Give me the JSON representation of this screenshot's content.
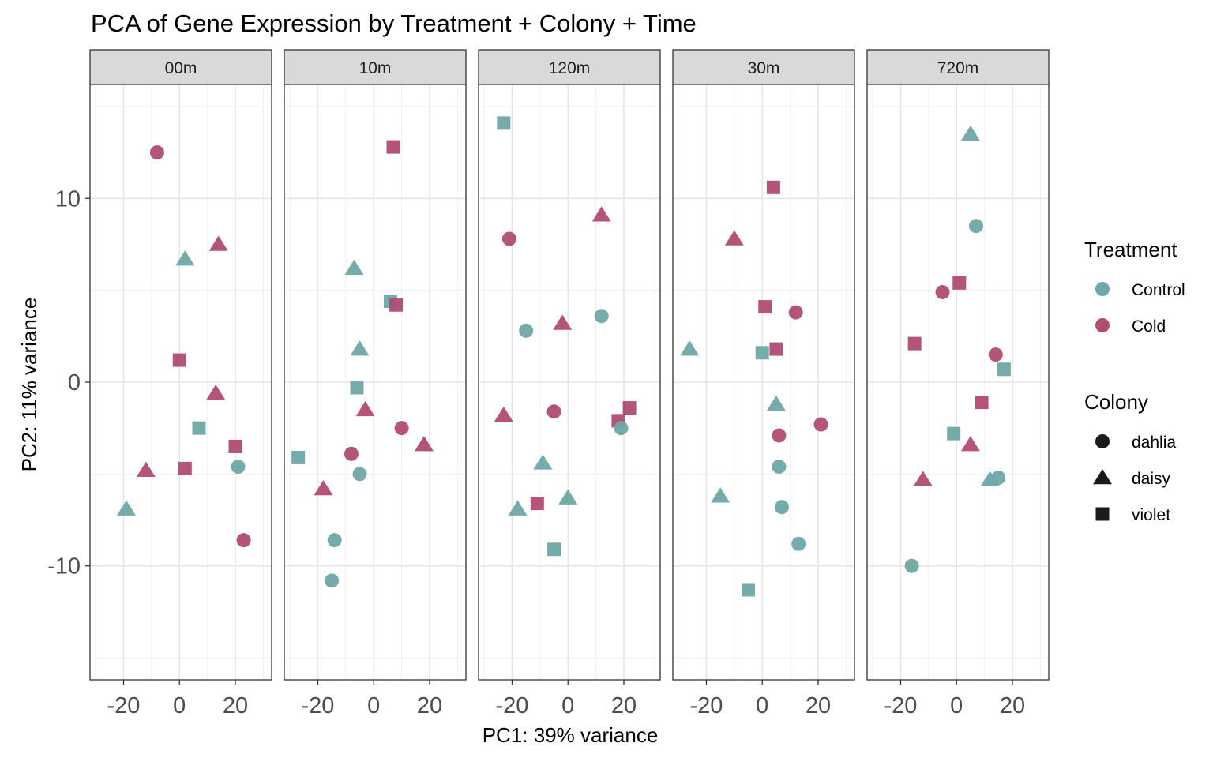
{
  "chart_data": {
    "type": "scatter",
    "title": "PCA of Gene Expression by Treatment + Colony + Time",
    "xlabel": "PC1: 39% variance",
    "ylabel": "PC2: 11% variance",
    "xlim": [
      -32,
      33
    ],
    "ylim": [
      -16.2,
      16.2
    ],
    "x_ticks": [
      -20,
      0,
      20
    ],
    "x_tick_labels": [
      "-20",
      "0",
      "20"
    ],
    "y_ticks": [
      -10,
      0,
      10
    ],
    "y_tick_labels": [
      "-10",
      "0",
      "10"
    ],
    "grid": true,
    "facet_by": "time",
    "legend": {
      "position": "right",
      "color_title": "Treatment",
      "color_entries": [
        {
          "label": "Control",
          "color": "#6fa6a8"
        },
        {
          "label": "Cold",
          "color": "#b04b72"
        }
      ],
      "shape_title": "Colony",
      "shape_entries": [
        {
          "label": "dahlia",
          "shape": "circle"
        },
        {
          "label": "daisy",
          "shape": "triangle"
        },
        {
          "label": "violet",
          "shape": "square"
        }
      ]
    },
    "panels": [
      {
        "label": "00m",
        "points": [
          {
            "x": -8,
            "y": 12.5,
            "treatment": "Cold",
            "colony": "dahlia"
          },
          {
            "x": 2,
            "y": 6.7,
            "treatment": "Control",
            "colony": "daisy"
          },
          {
            "x": 14,
            "y": 7.5,
            "treatment": "Cold",
            "colony": "daisy"
          },
          {
            "x": 0,
            "y": 1.2,
            "treatment": "Cold",
            "colony": "violet"
          },
          {
            "x": 13,
            "y": -0.6,
            "treatment": "Cold",
            "colony": "daisy"
          },
          {
            "x": 7,
            "y": -2.5,
            "treatment": "Control",
            "colony": "violet"
          },
          {
            "x": 20,
            "y": -3.5,
            "treatment": "Cold",
            "colony": "violet"
          },
          {
            "x": -12,
            "y": -4.8,
            "treatment": "Cold",
            "colony": "daisy"
          },
          {
            "x": 2,
            "y": -4.7,
            "treatment": "Cold",
            "colony": "violet"
          },
          {
            "x": 21,
            "y": -4.6,
            "treatment": "Control",
            "colony": "dahlia"
          },
          {
            "x": -19,
            "y": -6.9,
            "treatment": "Control",
            "colony": "daisy"
          },
          {
            "x": 23,
            "y": -8.6,
            "treatment": "Cold",
            "colony": "dahlia"
          }
        ]
      },
      {
        "label": "10m",
        "points": [
          {
            "x": 7,
            "y": 12.8,
            "treatment": "Cold",
            "colony": "violet"
          },
          {
            "x": -7,
            "y": 6.2,
            "treatment": "Control",
            "colony": "daisy"
          },
          {
            "x": 6,
            "y": 4.4,
            "treatment": "Control",
            "colony": "violet"
          },
          {
            "x": 8,
            "y": 4.2,
            "treatment": "Cold",
            "colony": "violet"
          },
          {
            "x": -5,
            "y": 1.8,
            "treatment": "Control",
            "colony": "daisy"
          },
          {
            "x": -6,
            "y": -0.3,
            "treatment": "Control",
            "colony": "violet"
          },
          {
            "x": -3,
            "y": -1.5,
            "treatment": "Cold",
            "colony": "daisy"
          },
          {
            "x": 10,
            "y": -2.5,
            "treatment": "Cold",
            "colony": "dahlia"
          },
          {
            "x": 18,
            "y": -3.4,
            "treatment": "Cold",
            "colony": "daisy"
          },
          {
            "x": -27,
            "y": -4.1,
            "treatment": "Control",
            "colony": "violet"
          },
          {
            "x": -8,
            "y": -3.9,
            "treatment": "Cold",
            "colony": "dahlia"
          },
          {
            "x": -5,
            "y": -5.0,
            "treatment": "Control",
            "colony": "dahlia"
          },
          {
            "x": -18,
            "y": -5.8,
            "treatment": "Cold",
            "colony": "daisy"
          },
          {
            "x": -14,
            "y": -8.6,
            "treatment": "Control",
            "colony": "dahlia"
          },
          {
            "x": -15,
            "y": -10.8,
            "treatment": "Control",
            "colony": "dahlia"
          }
        ]
      },
      {
        "label": "120m",
        "points": [
          {
            "x": -23,
            "y": 14.1,
            "treatment": "Control",
            "colony": "violet"
          },
          {
            "x": -21,
            "y": 7.8,
            "treatment": "Cold",
            "colony": "dahlia"
          },
          {
            "x": 12,
            "y": 9.1,
            "treatment": "Cold",
            "colony": "daisy"
          },
          {
            "x": -15,
            "y": 2.8,
            "treatment": "Control",
            "colony": "dahlia"
          },
          {
            "x": -2,
            "y": 3.2,
            "treatment": "Cold",
            "colony": "daisy"
          },
          {
            "x": 12,
            "y": 3.6,
            "treatment": "Control",
            "colony": "dahlia"
          },
          {
            "x": -23,
            "y": -1.8,
            "treatment": "Cold",
            "colony": "daisy"
          },
          {
            "x": -5,
            "y": -1.6,
            "treatment": "Cold",
            "colony": "dahlia"
          },
          {
            "x": 18,
            "y": -2.1,
            "treatment": "Cold",
            "colony": "violet"
          },
          {
            "x": 22,
            "y": -1.4,
            "treatment": "Cold",
            "colony": "violet"
          },
          {
            "x": 19,
            "y": -2.5,
            "treatment": "Control",
            "colony": "dahlia"
          },
          {
            "x": -9,
            "y": -4.4,
            "treatment": "Control",
            "colony": "daisy"
          },
          {
            "x": -18,
            "y": -6.9,
            "treatment": "Control",
            "colony": "daisy"
          },
          {
            "x": -11,
            "y": -6.6,
            "treatment": "Cold",
            "colony": "violet"
          },
          {
            "x": 0,
            "y": -6.3,
            "treatment": "Control",
            "colony": "daisy"
          },
          {
            "x": -5,
            "y": -9.1,
            "treatment": "Control",
            "colony": "violet"
          }
        ]
      },
      {
        "label": "30m",
        "points": [
          {
            "x": 4,
            "y": 10.6,
            "treatment": "Cold",
            "colony": "violet"
          },
          {
            "x": -10,
            "y": 7.8,
            "treatment": "Cold",
            "colony": "daisy"
          },
          {
            "x": 1,
            "y": 4.1,
            "treatment": "Cold",
            "colony": "violet"
          },
          {
            "x": 12,
            "y": 3.8,
            "treatment": "Cold",
            "colony": "dahlia"
          },
          {
            "x": -26,
            "y": 1.8,
            "treatment": "Control",
            "colony": "daisy"
          },
          {
            "x": 0,
            "y": 1.6,
            "treatment": "Control",
            "colony": "violet"
          },
          {
            "x": 5,
            "y": 1.8,
            "treatment": "Cold",
            "colony": "violet"
          },
          {
            "x": 5,
            "y": -1.2,
            "treatment": "Control",
            "colony": "daisy"
          },
          {
            "x": 21,
            "y": -2.3,
            "treatment": "Cold",
            "colony": "dahlia"
          },
          {
            "x": 6,
            "y": -2.9,
            "treatment": "Cold",
            "colony": "dahlia"
          },
          {
            "x": 6,
            "y": -4.6,
            "treatment": "Control",
            "colony": "dahlia"
          },
          {
            "x": -15,
            "y": -6.2,
            "treatment": "Control",
            "colony": "daisy"
          },
          {
            "x": 7,
            "y": -6.8,
            "treatment": "Control",
            "colony": "dahlia"
          },
          {
            "x": 13,
            "y": -8.8,
            "treatment": "Control",
            "colony": "dahlia"
          },
          {
            "x": -5,
            "y": -11.3,
            "treatment": "Control",
            "colony": "violet"
          }
        ]
      },
      {
        "label": "720m",
        "points": [
          {
            "x": 5,
            "y": 13.5,
            "treatment": "Control",
            "colony": "daisy"
          },
          {
            "x": 7,
            "y": 8.5,
            "treatment": "Control",
            "colony": "dahlia"
          },
          {
            "x": -5,
            "y": 4.9,
            "treatment": "Cold",
            "colony": "dahlia"
          },
          {
            "x": 1,
            "y": 5.4,
            "treatment": "Cold",
            "colony": "violet"
          },
          {
            "x": -15,
            "y": 2.1,
            "treatment": "Cold",
            "colony": "violet"
          },
          {
            "x": 14,
            "y": 1.5,
            "treatment": "Cold",
            "colony": "dahlia"
          },
          {
            "x": 17,
            "y": 0.7,
            "treatment": "Control",
            "colony": "violet"
          },
          {
            "x": 9,
            "y": -1.1,
            "treatment": "Cold",
            "colony": "violet"
          },
          {
            "x": -1,
            "y": -2.8,
            "treatment": "Control",
            "colony": "violet"
          },
          {
            "x": 5,
            "y": -3.4,
            "treatment": "Cold",
            "colony": "daisy"
          },
          {
            "x": -12,
            "y": -5.3,
            "treatment": "Cold",
            "colony": "daisy"
          },
          {
            "x": 12,
            "y": -5.3,
            "treatment": "Control",
            "colony": "daisy"
          },
          {
            "x": 15,
            "y": -5.2,
            "treatment": "Control",
            "colony": "dahlia"
          },
          {
            "x": -16,
            "y": -10.0,
            "treatment": "Control",
            "colony": "dahlia"
          }
        ]
      }
    ]
  }
}
